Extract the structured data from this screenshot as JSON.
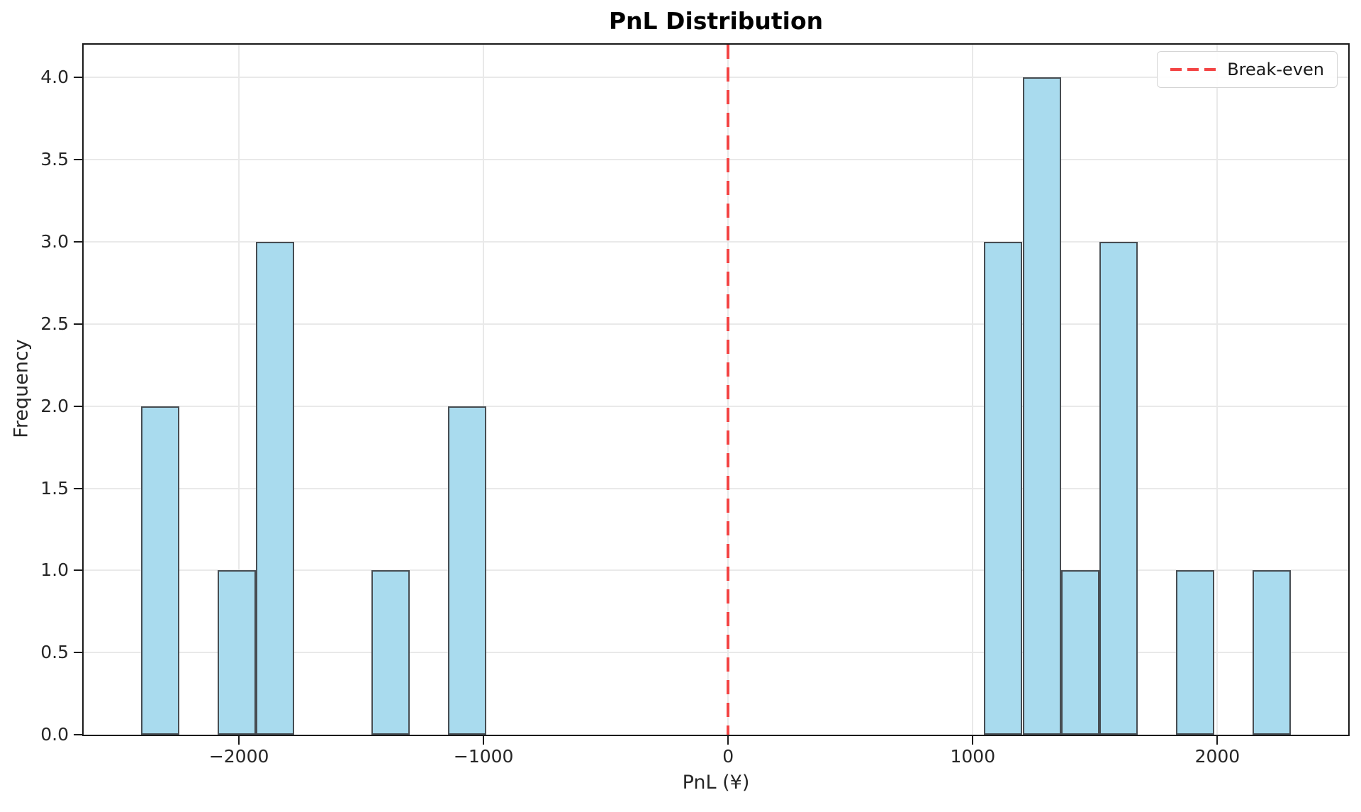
{
  "figure": {
    "title": "PnL Distribution",
    "xlabel": "PnL (¥)",
    "ylabel": "Frequency",
    "legend": {
      "label": "Break-even"
    }
  },
  "chart_data": {
    "type": "histogram",
    "title": "PnL Distribution",
    "xlabel": "PnL (¥)",
    "ylabel": "Frequency",
    "bin_start": -2400,
    "bin_width": 156.6667,
    "bin_count": 30,
    "counts": [
      2,
      0,
      1,
      3,
      0,
      0,
      1,
      0,
      2,
      0,
      0,
      0,
      0,
      0,
      0,
      0,
      0,
      0,
      0,
      0,
      0,
      0,
      3,
      4,
      1,
      3,
      0,
      1,
      0,
      1
    ],
    "data_range": [
      -2400,
      2300
    ],
    "xlim": [
      -2635,
      2535
    ],
    "ylim": [
      0,
      4.2
    ],
    "x_ticks": [
      -2000,
      -1000,
      0,
      1000,
      2000
    ],
    "x_tick_labels": [
      "−2000",
      "−1000",
      "0",
      "1000",
      "2000"
    ],
    "y_ticks": [
      0,
      0.5,
      1,
      1.5,
      2,
      2.5,
      3,
      3.5,
      4
    ],
    "y_tick_labels": [
      "0.0",
      "0.5",
      "1.0",
      "1.5",
      "2.0",
      "2.5",
      "3.0",
      "3.5",
      "4.0"
    ],
    "grid": true,
    "legend_position": "upper right",
    "break_even_x": 0,
    "colors": {
      "bar_fill": "#A9DBEE",
      "bar_edge": "#474D52",
      "break_even": "#F34444",
      "grid": "#E9E9E9",
      "spine": "#1A1A1A",
      "text": "#262626",
      "legend_border": "#D4D4D4"
    }
  }
}
